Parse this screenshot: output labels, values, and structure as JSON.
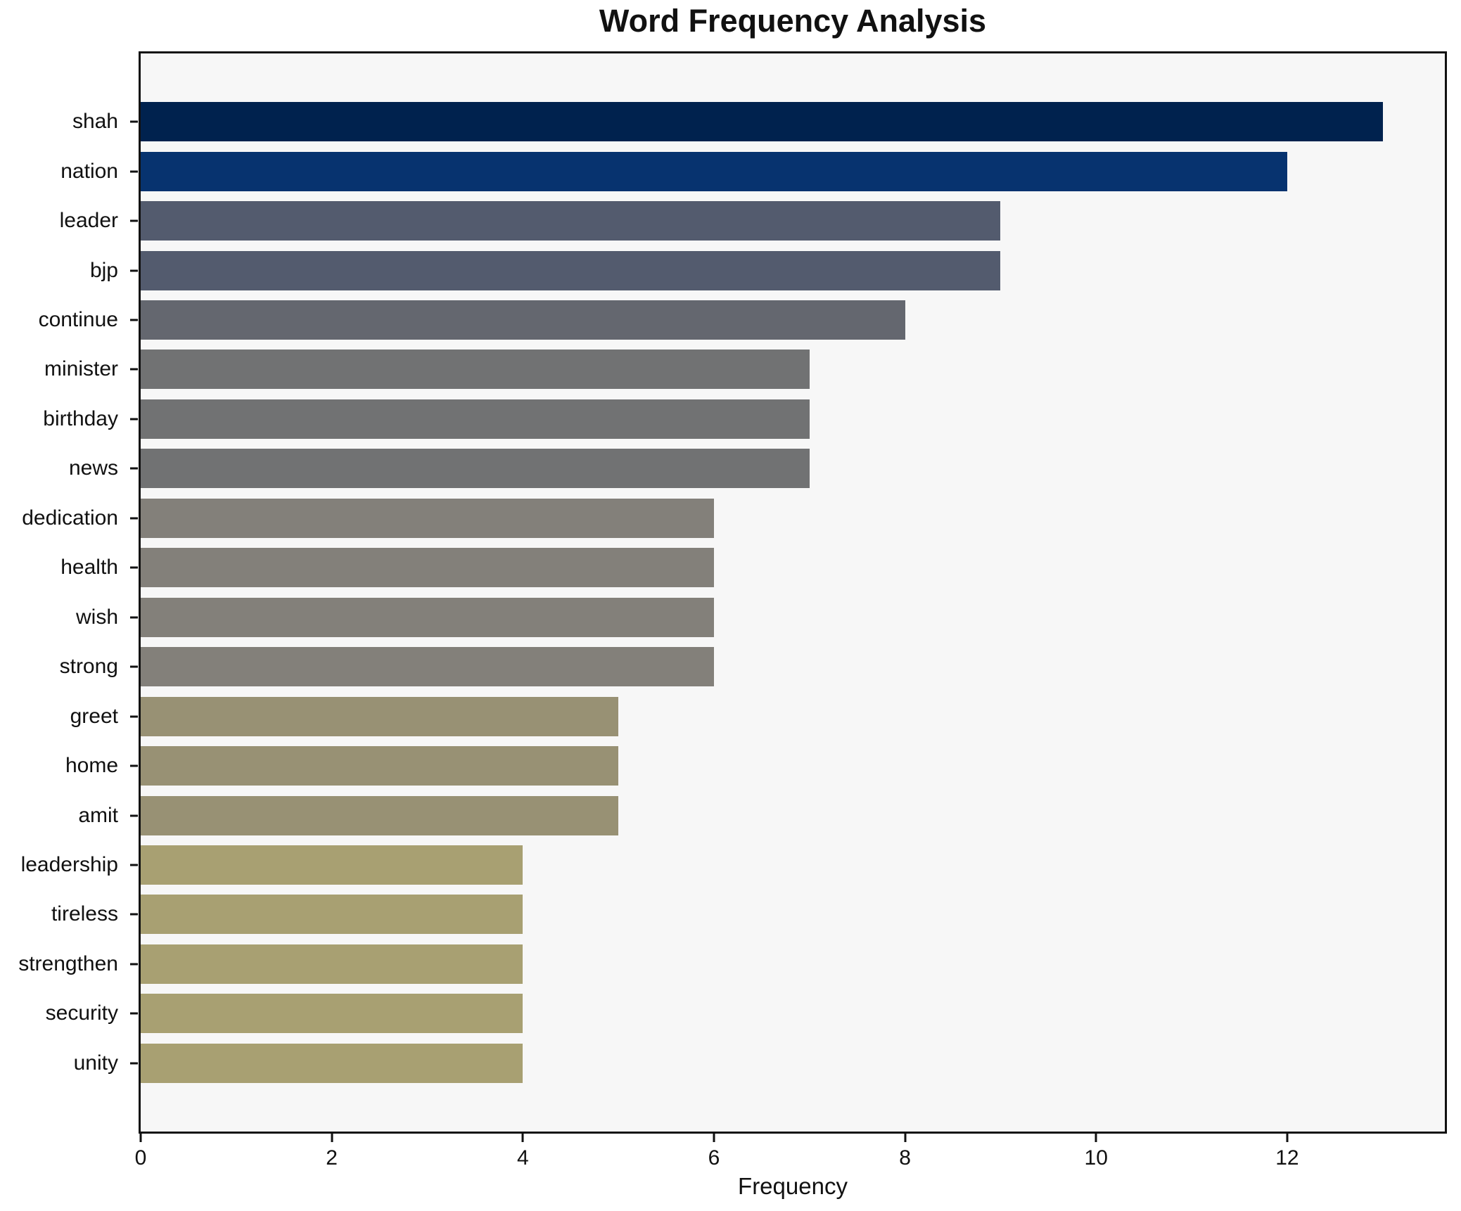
{
  "chart_data": {
    "type": "bar",
    "orientation": "horizontal",
    "title": "Word Frequency Analysis",
    "xlabel": "Frequency",
    "ylabel": "",
    "categories": [
      "shah",
      "nation",
      "leader",
      "bjp",
      "continue",
      "minister",
      "birthday",
      "news",
      "dedication",
      "health",
      "wish",
      "strong",
      "greet",
      "home",
      "amit",
      "leadership",
      "tireless",
      "strengthen",
      "security",
      "unity"
    ],
    "values": [
      13,
      12,
      9,
      9,
      8,
      7,
      7,
      7,
      6,
      6,
      6,
      6,
      5,
      5,
      5,
      4,
      4,
      4,
      4,
      4
    ],
    "bar_colors": [
      "#00224e",
      "#07336f",
      "#535b6e",
      "#535b6e",
      "#64676f",
      "#717273",
      "#717273",
      "#717273",
      "#83807a",
      "#83807a",
      "#83807a",
      "#83807a",
      "#989174",
      "#989174",
      "#989174",
      "#a8a072",
      "#a8a072",
      "#a8a072",
      "#a8a072",
      "#a8a072"
    ],
    "xticks": [
      0,
      2,
      4,
      6,
      8,
      10,
      12
    ],
    "xlim": [
      0,
      13.65
    ],
    "grid": false,
    "legend_position": "none",
    "plot_background": "#f7f7f7",
    "figure_background": "#ffffff",
    "spine_color": "#111111",
    "text_color": "#111111"
  }
}
